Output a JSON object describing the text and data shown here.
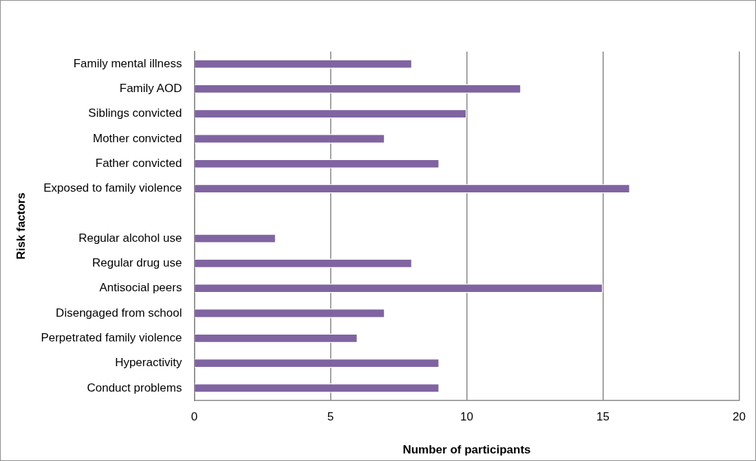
{
  "chart_data": {
    "type": "bar",
    "orientation": "horizontal",
    "ylabel": "Risk factors",
    "xlabel": "Number of participants",
    "categories": [
      "Family mental illness",
      "Family AOD",
      "Siblings convicted",
      "Mother convicted",
      "Father convicted",
      "Exposed to family violence",
      null,
      "Regular alcohol use",
      "Regular drug use",
      "Antisocial peers",
      "Disengaged from school",
      "Perpetrated family violence",
      "Hyperactivity",
      "Conduct problems"
    ],
    "values": [
      8,
      12,
      10,
      7,
      9,
      16,
      null,
      3,
      8,
      15,
      7,
      6,
      9,
      9
    ],
    "color": "#8064a2",
    "xlim": [
      0,
      20
    ],
    "xticks": [
      0,
      5,
      10,
      15,
      20
    ],
    "grid": "x",
    "legend": false
  }
}
